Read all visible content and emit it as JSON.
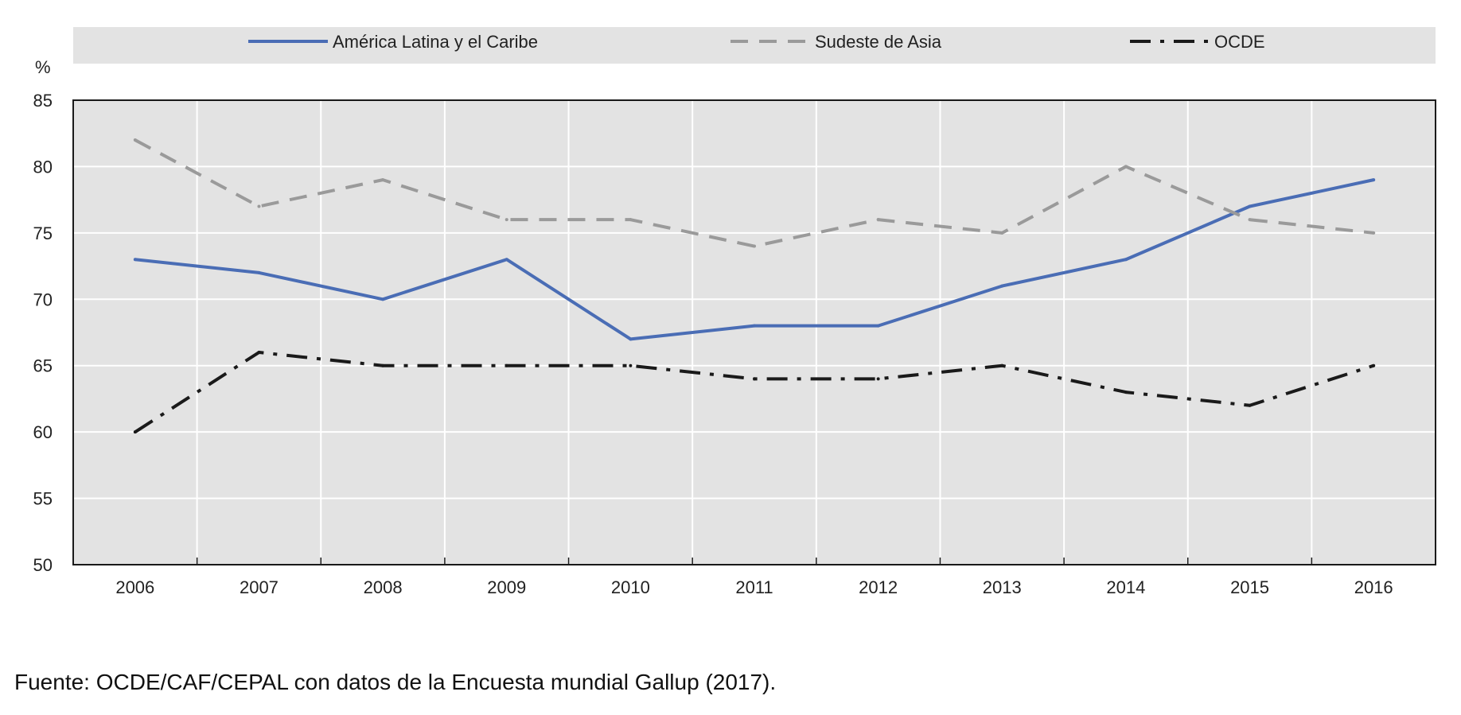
{
  "chart_data": {
    "type": "line",
    "title": "",
    "xlabel": "",
    "ylabel": "%",
    "ylim": [
      50,
      85
    ],
    "yticks": [
      "85",
      "80",
      "75",
      "70",
      "65",
      "60",
      "55",
      "50"
    ],
    "categories": [
      "2006",
      "2007",
      "2008",
      "2009",
      "2010",
      "2011",
      "2012",
      "2013",
      "2014",
      "2015",
      "2016"
    ],
    "grid": true,
    "legend_position": "top",
    "series": [
      {
        "name": "América Latina y el Caribe",
        "color": "#4a6db5",
        "style": "solid",
        "values": [
          73,
          72,
          70,
          73,
          67,
          68,
          68,
          71,
          73,
          77,
          79
        ]
      },
      {
        "name": "Sudeste de Asia",
        "color": "#9a9a9a",
        "style": "dashed",
        "values": [
          82,
          77,
          79,
          76,
          76,
          74,
          76,
          75,
          80,
          76,
          75
        ]
      },
      {
        "name": "OCDE",
        "color": "#1a1a1a",
        "style": "dashdot",
        "values": [
          60,
          66,
          65,
          65,
          65,
          64,
          64,
          65,
          63,
          62,
          65
        ]
      }
    ]
  },
  "source_note": "Fuente: OCDE/CAF/CEPAL con datos de la Encuesta mundial Gallup (2017)."
}
